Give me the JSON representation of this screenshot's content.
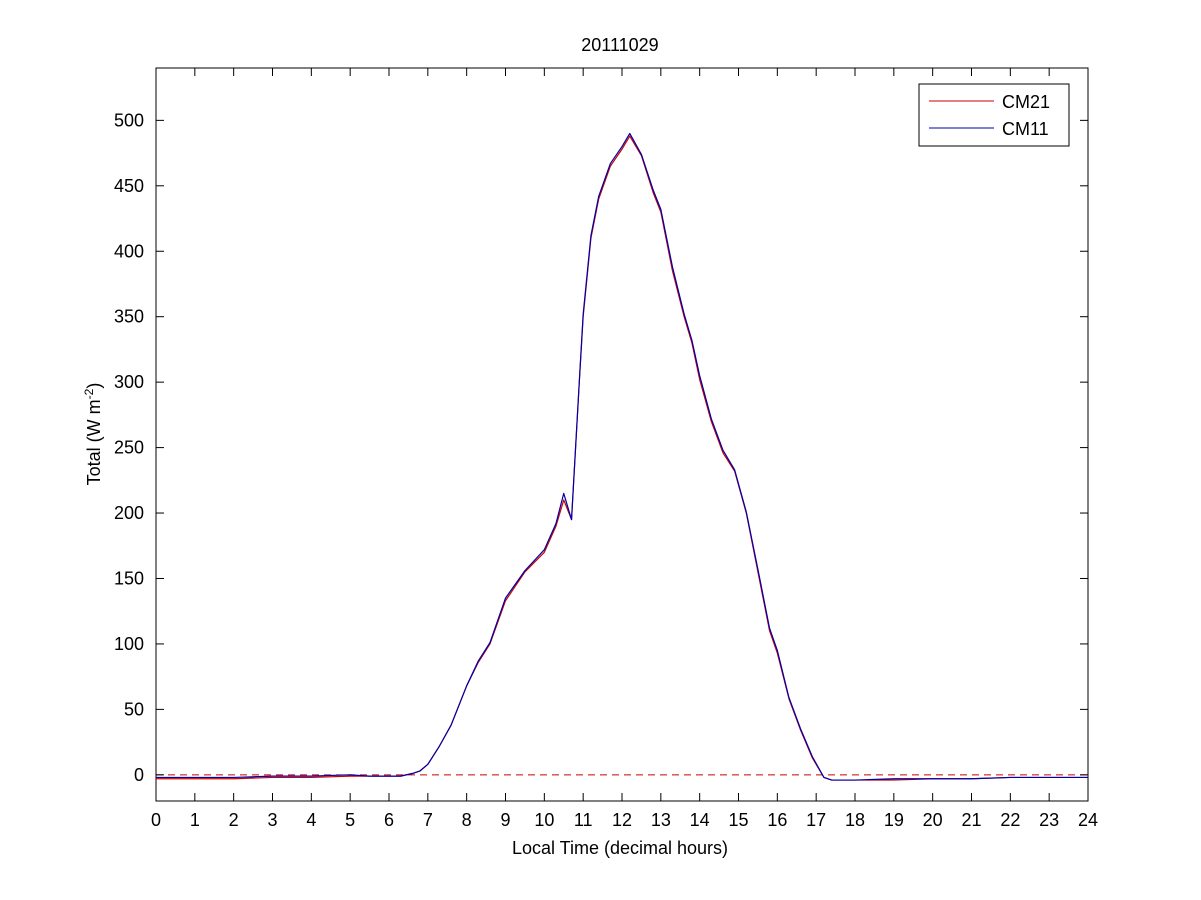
{
  "chart_data": {
    "type": "line",
    "title": "20111029",
    "xlabel": "Local Time (decimal hours)",
    "ylabel_main": "Total (W m",
    "ylabel_sup": "-2",
    "ylabel_close": ")",
    "xlim": [
      0,
      24
    ],
    "ylim": [
      -20,
      540
    ],
    "xticks": [
      "0",
      "1",
      "2",
      "3",
      "4",
      "5",
      "6",
      "7",
      "8",
      "9",
      "10",
      "11",
      "12",
      "13",
      "14",
      "15",
      "16",
      "17",
      "18",
      "19",
      "20",
      "21",
      "22",
      "23",
      "24"
    ],
    "yticks": [
      "0",
      "50",
      "100",
      "150",
      "200",
      "250",
      "300",
      "350",
      "400",
      "450",
      "500"
    ],
    "grid": false,
    "legend_position": "top-right",
    "reference_line": {
      "y": 0,
      "style": "dashed",
      "color": "#cc0000"
    },
    "series": [
      {
        "name": "CM21",
        "color": "#cc0000",
        "x": [
          0,
          1,
          2,
          3,
          4,
          5,
          5.5,
          6,
          6.3,
          6.6,
          6.8,
          7,
          7.3,
          7.6,
          8,
          8.3,
          8.6,
          9,
          9.5,
          10,
          10.3,
          10.5,
          10.7,
          10.9,
          11,
          11.2,
          11.4,
          11.7,
          12,
          12.2,
          12.5,
          12.8,
          13,
          13.3,
          13.6,
          13.8,
          14,
          14.3,
          14.6,
          14.9,
          15.2,
          15.5,
          15.8,
          16,
          16.3,
          16.6,
          16.9,
          17.2,
          17.4,
          17.6,
          18,
          19,
          20,
          21,
          22,
          23,
          24
        ],
        "y": [
          -3,
          -3,
          -3,
          -2,
          -2,
          -1,
          -1,
          -1,
          -1,
          1,
          3,
          8,
          22,
          38,
          68,
          86,
          100,
          133,
          155,
          170,
          190,
          210,
          195,
          300,
          350,
          410,
          440,
          465,
          478,
          488,
          473,
          445,
          430,
          385,
          350,
          330,
          302,
          270,
          246,
          232,
          200,
          155,
          110,
          93,
          58,
          34,
          13,
          -2,
          -4,
          -4,
          -4,
          -4,
          -3,
          -3,
          -2,
          -2,
          -2
        ]
      },
      {
        "name": "CM11",
        "color": "#0000aa",
        "x": [
          0,
          1,
          2,
          3,
          4,
          5,
          5.5,
          6,
          6.3,
          6.6,
          6.8,
          7,
          7.3,
          7.6,
          8,
          8.3,
          8.6,
          9,
          9.5,
          10,
          10.3,
          10.5,
          10.7,
          10.9,
          11,
          11.2,
          11.4,
          11.7,
          12,
          12.2,
          12.5,
          12.8,
          13,
          13.3,
          13.6,
          13.8,
          14,
          14.3,
          14.6,
          14.9,
          15.2,
          15.5,
          15.8,
          16,
          16.3,
          16.6,
          16.9,
          17.2,
          17.4,
          17.6,
          18,
          19,
          20,
          21,
          22,
          23,
          24
        ],
        "y": [
          -2,
          -2,
          -2,
          -1,
          -1,
          0,
          -1,
          -1,
          -1,
          1,
          3,
          8,
          22,
          38,
          68,
          87,
          101,
          135,
          156,
          172,
          192,
          215,
          195,
          300,
          352,
          412,
          442,
          467,
          480,
          490,
          474,
          447,
          432,
          388,
          352,
          332,
          305,
          272,
          248,
          233,
          201,
          157,
          112,
          95,
          59,
          35,
          14,
          -2,
          -4,
          -4,
          -4,
          -3,
          -3,
          -3,
          -2,
          -2,
          -2
        ]
      }
    ]
  }
}
